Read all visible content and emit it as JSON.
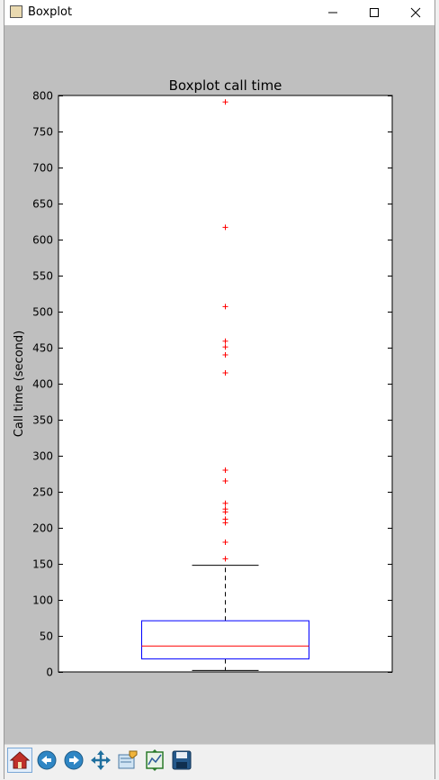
{
  "window": {
    "title": "Boxplot"
  },
  "icons": {
    "app": "matplotlib-figure-icon",
    "minimize": "minimize-icon",
    "maximize": "maximize-icon",
    "close": "close-icon"
  },
  "toolbar": {
    "buttons": [
      {
        "name": "home-button",
        "icon": "home-icon"
      },
      {
        "name": "back-button",
        "icon": "arrow-left-icon"
      },
      {
        "name": "forward-button",
        "icon": "arrow-right-icon"
      },
      {
        "name": "pan-button",
        "icon": "move-icon"
      },
      {
        "name": "zoom-button",
        "icon": "zoom-rect-icon"
      },
      {
        "name": "subplots-button",
        "icon": "subplots-icon"
      },
      {
        "name": "save-button",
        "icon": "save-icon"
      }
    ]
  },
  "chart_data": {
    "type": "box",
    "title": "Boxplot call time",
    "ylabel": "Call time (second)",
    "xlabel": "",
    "ylim": [
      0,
      800
    ],
    "yticks": [
      0,
      50,
      100,
      150,
      200,
      250,
      300,
      350,
      400,
      450,
      500,
      550,
      600,
      650,
      700,
      750,
      800
    ],
    "grid": false,
    "box": {
      "whisker_low": 2,
      "q1": 18,
      "median": 36,
      "q3": 71,
      "whisker_high": 148
    },
    "outliers": [
      157,
      180,
      207,
      212,
      222,
      226,
      234,
      265,
      280,
      415,
      440,
      451,
      459,
      507,
      617,
      791
    ],
    "colors": {
      "box": "#0000ff",
      "median": "#ff0000",
      "whisker": "#000000",
      "outlier": "#ff0000",
      "figure_bg": "#bfbfbf",
      "axes_bg": "#ffffff"
    }
  }
}
